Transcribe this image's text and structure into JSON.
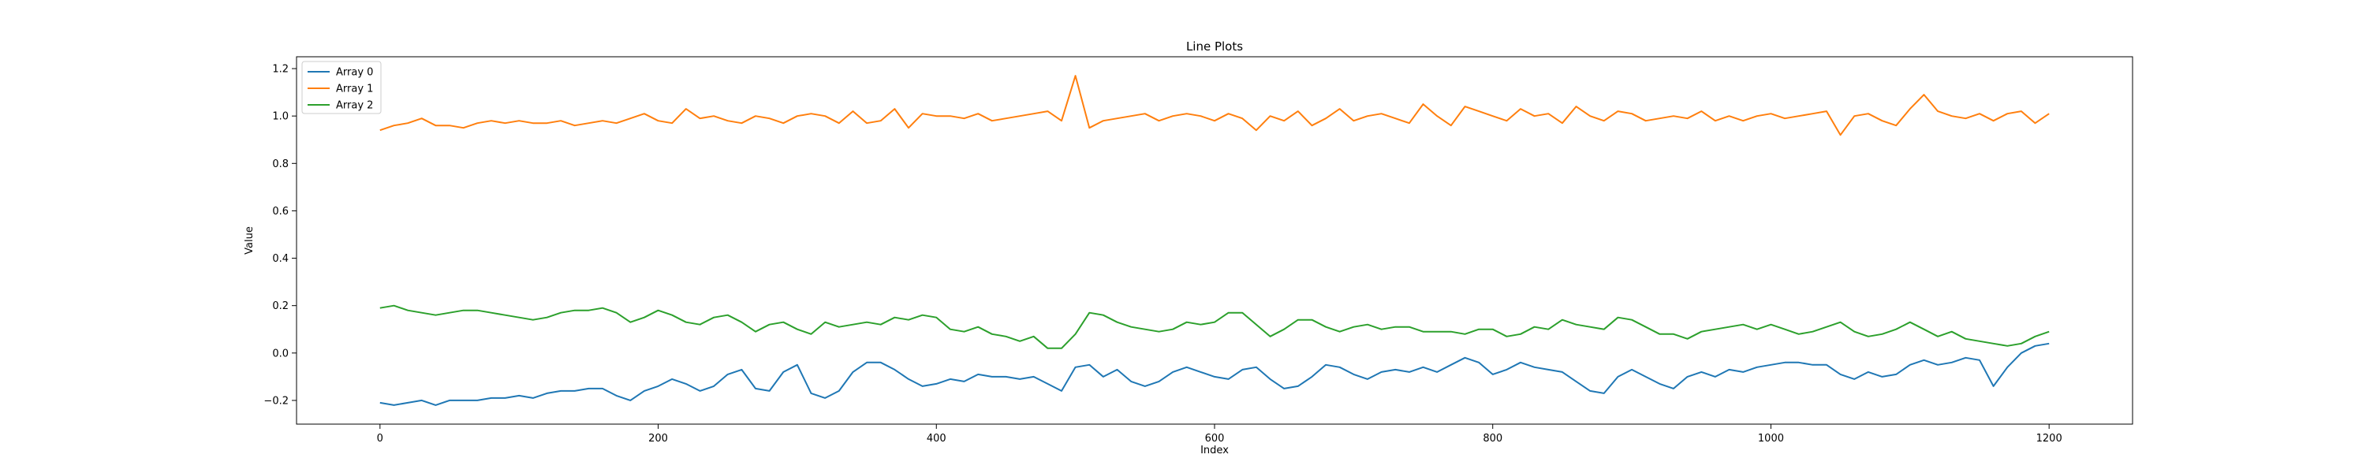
{
  "chart_data": {
    "type": "line",
    "title": "Line Plots",
    "xlabel": "Index",
    "ylabel": "Value",
    "xlim": [
      -60,
      1260
    ],
    "ylim": [
      -0.3,
      1.25
    ],
    "x_ticks": [
      0,
      200,
      400,
      600,
      800,
      1000,
      1200
    ],
    "y_ticks": [
      -0.2,
      0.0,
      0.2,
      0.4,
      0.6,
      0.8,
      1.0,
      1.2
    ],
    "y_tick_labels": [
      "−0.2",
      "0.0",
      "0.2",
      "0.4",
      "0.6",
      "0.8",
      "1.0",
      "1.2"
    ],
    "grid": false,
    "legend": "top-left",
    "x": [
      0,
      10,
      20,
      30,
      40,
      50,
      60,
      70,
      80,
      90,
      100,
      110,
      120,
      130,
      140,
      150,
      160,
      170,
      180,
      190,
      200,
      210,
      220,
      230,
      240,
      250,
      260,
      270,
      280,
      290,
      300,
      310,
      320,
      330,
      340,
      350,
      360,
      370,
      380,
      390,
      400,
      410,
      420,
      430,
      440,
      450,
      460,
      470,
      480,
      490,
      500,
      510,
      520,
      530,
      540,
      550,
      560,
      570,
      580,
      590,
      600,
      610,
      620,
      630,
      640,
      650,
      660,
      670,
      680,
      690,
      700,
      710,
      720,
      730,
      740,
      750,
      760,
      770,
      780,
      790,
      800,
      810,
      820,
      830,
      840,
      850,
      860,
      870,
      880,
      890,
      900,
      910,
      920,
      930,
      940,
      950,
      960,
      970,
      980,
      990,
      1000,
      1010,
      1020,
      1030,
      1040,
      1050,
      1060,
      1070,
      1080,
      1090,
      1100,
      1110,
      1120,
      1130,
      1140,
      1150,
      1160,
      1170,
      1180,
      1190,
      1200
    ],
    "series": [
      {
        "name": "Array 0",
        "color": "#1f77b4",
        "values": [
          -0.21,
          -0.22,
          -0.21,
          -0.2,
          -0.22,
          -0.2,
          -0.2,
          -0.2,
          -0.19,
          -0.19,
          -0.18,
          -0.19,
          -0.17,
          -0.16,
          -0.16,
          -0.15,
          -0.15,
          -0.18,
          -0.2,
          -0.16,
          -0.14,
          -0.11,
          -0.13,
          -0.16,
          -0.14,
          -0.09,
          -0.07,
          -0.15,
          -0.16,
          -0.08,
          -0.05,
          -0.17,
          -0.19,
          -0.16,
          -0.08,
          -0.04,
          -0.04,
          -0.07,
          -0.11,
          -0.14,
          -0.13,
          -0.11,
          -0.12,
          -0.09,
          -0.1,
          -0.1,
          -0.11,
          -0.1,
          -0.13,
          -0.16,
          -0.06,
          -0.05,
          -0.1,
          -0.07,
          -0.12,
          -0.14,
          -0.12,
          -0.08,
          -0.06,
          -0.08,
          -0.1,
          -0.11,
          -0.07,
          -0.06,
          -0.11,
          -0.15,
          -0.14,
          -0.1,
          -0.05,
          -0.06,
          -0.09,
          -0.11,
          -0.08,
          -0.07,
          -0.08,
          -0.06,
          -0.08,
          -0.05,
          -0.02,
          -0.04,
          -0.09,
          -0.07,
          -0.04,
          -0.06,
          -0.07,
          -0.08,
          -0.12,
          -0.16,
          -0.17,
          -0.1,
          -0.07,
          -0.1,
          -0.13,
          -0.15,
          -0.1,
          -0.08,
          -0.1,
          -0.07,
          -0.08,
          -0.06,
          -0.05,
          -0.04,
          -0.04,
          -0.05,
          -0.05,
          -0.09,
          -0.11,
          -0.08,
          -0.1,
          -0.09,
          -0.05,
          -0.03,
          -0.05,
          -0.04,
          -0.02,
          -0.03,
          -0.14,
          -0.06,
          0.0,
          0.03,
          0.04
        ]
      },
      {
        "name": "Array 1",
        "color": "#ff7f0e",
        "values": [
          0.94,
          0.96,
          0.97,
          0.99,
          0.96,
          0.96,
          0.95,
          0.97,
          0.98,
          0.97,
          0.98,
          0.97,
          0.97,
          0.98,
          0.96,
          0.97,
          0.98,
          0.97,
          0.99,
          1.01,
          0.98,
          0.97,
          1.03,
          0.99,
          1.0,
          0.98,
          0.97,
          1.0,
          0.99,
          0.97,
          1.0,
          1.01,
          1.0,
          0.97,
          1.02,
          0.97,
          0.98,
          1.03,
          0.95,
          1.01,
          1.0,
          1.0,
          0.99,
          1.01,
          0.98,
          0.99,
          1.0,
          1.01,
          1.02,
          0.98,
          1.17,
          0.95,
          0.98,
          0.99,
          1.0,
          1.01,
          0.98,
          1.0,
          1.01,
          1.0,
          0.98,
          1.01,
          0.99,
          0.94,
          1.0,
          0.98,
          1.02,
          0.96,
          0.99,
          1.03,
          0.98,
          1.0,
          1.01,
          0.99,
          0.97,
          1.05,
          1.0,
          0.96,
          1.04,
          1.02,
          1.0,
          0.98,
          1.03,
          1.0,
          1.01,
          0.97,
          1.04,
          1.0,
          0.98,
          1.02,
          1.01,
          0.98,
          0.99,
          1.0,
          0.99,
          1.02,
          0.98,
          1.0,
          0.98,
          1.0,
          1.01,
          0.99,
          1.0,
          1.01,
          1.02,
          0.92,
          1.0,
          1.01,
          0.98,
          0.96,
          1.03,
          1.09,
          1.02,
          1.0,
          0.99,
          1.01,
          0.98,
          1.01,
          1.02,
          0.97,
          1.01
        ]
      },
      {
        "name": "Array 2",
        "color": "#2ca02c",
        "values": [
          0.19,
          0.2,
          0.18,
          0.17,
          0.16,
          0.17,
          0.18,
          0.18,
          0.17,
          0.16,
          0.15,
          0.14,
          0.15,
          0.17,
          0.18,
          0.18,
          0.19,
          0.17,
          0.13,
          0.15,
          0.18,
          0.16,
          0.13,
          0.12,
          0.15,
          0.16,
          0.13,
          0.09,
          0.12,
          0.13,
          0.1,
          0.08,
          0.13,
          0.11,
          0.12,
          0.13,
          0.12,
          0.15,
          0.14,
          0.16,
          0.15,
          0.1,
          0.09,
          0.11,
          0.08,
          0.07,
          0.05,
          0.07,
          0.02,
          0.02,
          0.08,
          0.17,
          0.16,
          0.13,
          0.11,
          0.1,
          0.09,
          0.1,
          0.13,
          0.12,
          0.13,
          0.17,
          0.17,
          0.12,
          0.07,
          0.1,
          0.14,
          0.14,
          0.11,
          0.09,
          0.11,
          0.12,
          0.1,
          0.11,
          0.11,
          0.09,
          0.09,
          0.09,
          0.08,
          0.1,
          0.1,
          0.07,
          0.08,
          0.11,
          0.1,
          0.14,
          0.12,
          0.11,
          0.1,
          0.15,
          0.14,
          0.11,
          0.08,
          0.08,
          0.06,
          0.09,
          0.1,
          0.11,
          0.12,
          0.1,
          0.12,
          0.1,
          0.08,
          0.09,
          0.11,
          0.13,
          0.09,
          0.07,
          0.08,
          0.1,
          0.13,
          0.1,
          0.07,
          0.09,
          0.06,
          0.05,
          0.04,
          0.03,
          0.04,
          0.07,
          0.09
        ]
      }
    ]
  }
}
